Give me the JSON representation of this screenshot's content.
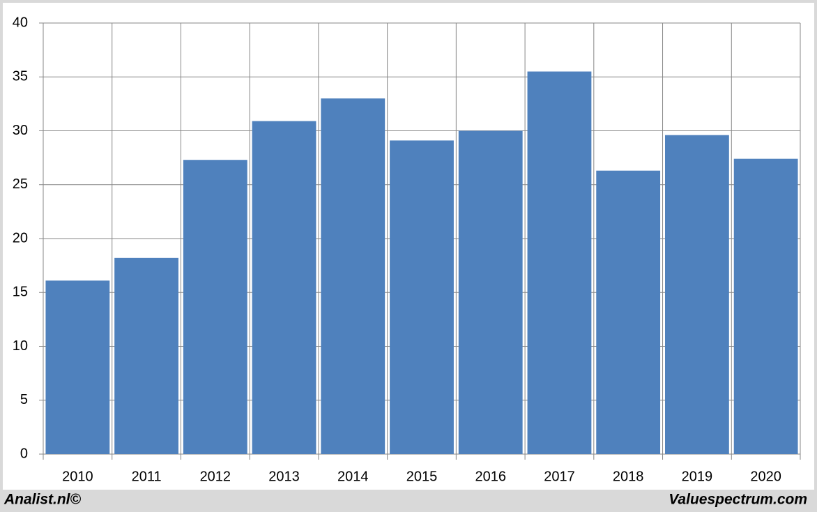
{
  "chart_data": {
    "type": "bar",
    "categories": [
      "2010",
      "2011",
      "2012",
      "2013",
      "2014",
      "2015",
      "2016",
      "2017",
      "2018",
      "2019",
      "2020"
    ],
    "values": [
      16.1,
      18.2,
      27.3,
      30.9,
      33.0,
      29.1,
      30.0,
      35.5,
      26.3,
      29.6,
      27.4
    ],
    "color": "#4f81bd",
    "ylim": [
      0,
      40
    ],
    "yticks": [
      0,
      5,
      10,
      15,
      20,
      25,
      30,
      35,
      40
    ],
    "grid": true,
    "source_left": "Analist.nl©",
    "source_right": "Valuespectrum.com"
  }
}
